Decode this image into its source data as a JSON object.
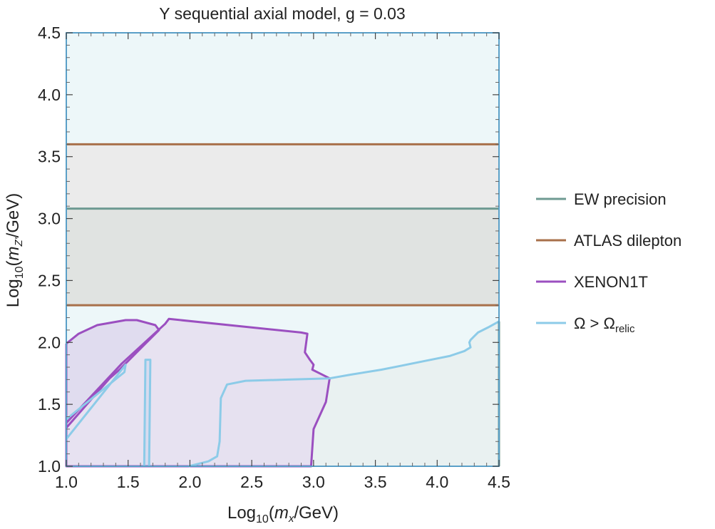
{
  "chart_data": {
    "type": "area",
    "title": "Y sequential axial model, g = 0.03",
    "xlabel": {
      "prefix": "Log",
      "sub": "10",
      "open": "(",
      "var": "m",
      "varsub": "x",
      "unit": "/GeV)"
    },
    "ylabel": {
      "prefix": "Log",
      "sub": "10",
      "open": "(",
      "var": "m",
      "varsub": "Z'",
      "unit": "/GeV)"
    },
    "xlim": [
      1.0,
      4.5
    ],
    "ylim": [
      1.0,
      4.5
    ],
    "xticks": [
      "1.0",
      "1.5",
      "2.0",
      "2.5",
      "3.0",
      "3.5",
      "4.0",
      "4.5"
    ],
    "yticks": [
      "1.0",
      "1.5",
      "2.0",
      "2.5",
      "3.0",
      "3.5",
      "4.0",
      "4.5"
    ],
    "grid": false,
    "legend_position": "right",
    "colors": {
      "ew": "#6e9a92",
      "atlas": "#a8704a",
      "xenon": "#9b4fc0",
      "relic": "#8ccbe8",
      "frame": "#5aa0c8",
      "region_bg": "#edf7f9",
      "band_upper": "#ebebeb",
      "band_lower": "#e0e3e1"
    },
    "series": [
      {
        "name": "EW precision",
        "key": "ew",
        "boundary": [
          [
            1.0,
            3.08
          ],
          [
            4.5,
            3.08
          ]
        ],
        "vertical_edge": [
          [
            4.5,
            1.0
          ],
          [
            4.5,
            2.17
          ]
        ]
      },
      {
        "name": "ATLAS dilepton",
        "key": "atlas",
        "lines": [
          [
            [
              1.0,
              3.6
            ],
            [
              4.5,
              3.6
            ]
          ],
          [
            [
              1.0,
              2.3
            ],
            [
              4.5,
              2.3
            ]
          ]
        ]
      },
      {
        "name": "XENON1T",
        "key": "xenon",
        "outer": [
          [
            1.0,
            1.99
          ],
          [
            1.1,
            2.07
          ],
          [
            1.25,
            2.14
          ],
          [
            1.48,
            2.18
          ],
          [
            1.57,
            2.18
          ],
          [
            1.72,
            2.14
          ],
          [
            1.75,
            2.1
          ],
          [
            1.62,
            1.97
          ],
          [
            1.5,
            1.85
          ],
          [
            1.43,
            1.78
          ],
          [
            1.35,
            1.71
          ],
          [
            1.0,
            1.31
          ],
          [
            1.0,
            1.99
          ]
        ],
        "main": [
          [
            1.0,
            1.35
          ],
          [
            1.45,
            1.83
          ],
          [
            1.8,
            2.15
          ],
          [
            1.83,
            2.19
          ],
          [
            2.9,
            2.08
          ],
          [
            2.95,
            2.07
          ],
          [
            2.93,
            1.92
          ],
          [
            2.97,
            1.86
          ],
          [
            3.0,
            1.82
          ],
          [
            2.99,
            1.78
          ],
          [
            3.05,
            1.75
          ],
          [
            3.13,
            1.71
          ],
          [
            3.1,
            1.52
          ],
          [
            3.0,
            1.3
          ],
          [
            2.98,
            1.0
          ],
          [
            1.0,
            1.0
          ],
          [
            1.0,
            1.35
          ]
        ]
      },
      {
        "name": "Ω > Ω",
        "name_sub": "relic",
        "key": "relic",
        "outer": [
          [
            1.0,
            1.22
          ],
          [
            1.48,
            1.82
          ],
          [
            1.47,
            1.76
          ],
          [
            1.0,
            1.38
          ]
        ],
        "boundary": [
          [
            1.99,
            1.0
          ],
          [
            2.15,
            1.04
          ],
          [
            2.22,
            1.08
          ],
          [
            2.24,
            1.2
          ],
          [
            2.25,
            1.55
          ],
          [
            2.3,
            1.66
          ],
          [
            2.45,
            1.69
          ],
          [
            2.8,
            1.7
          ],
          [
            3.13,
            1.71
          ],
          [
            3.3,
            1.74
          ],
          [
            3.55,
            1.78
          ],
          [
            3.7,
            1.81
          ],
          [
            3.9,
            1.85
          ],
          [
            4.1,
            1.89
          ],
          [
            4.22,
            1.93
          ],
          [
            4.27,
            1.96
          ],
          [
            4.26,
            2.0
          ],
          [
            4.27,
            2.02
          ],
          [
            4.3,
            2.05
          ],
          [
            4.33,
            2.08
          ],
          [
            4.41,
            2.12
          ],
          [
            4.5,
            2.17
          ]
        ],
        "strip": [
          [
            1.63,
            1.0
          ],
          [
            1.64,
            1.86
          ],
          [
            1.68,
            1.86
          ],
          [
            1.67,
            1.0
          ]
        ]
      }
    ]
  }
}
